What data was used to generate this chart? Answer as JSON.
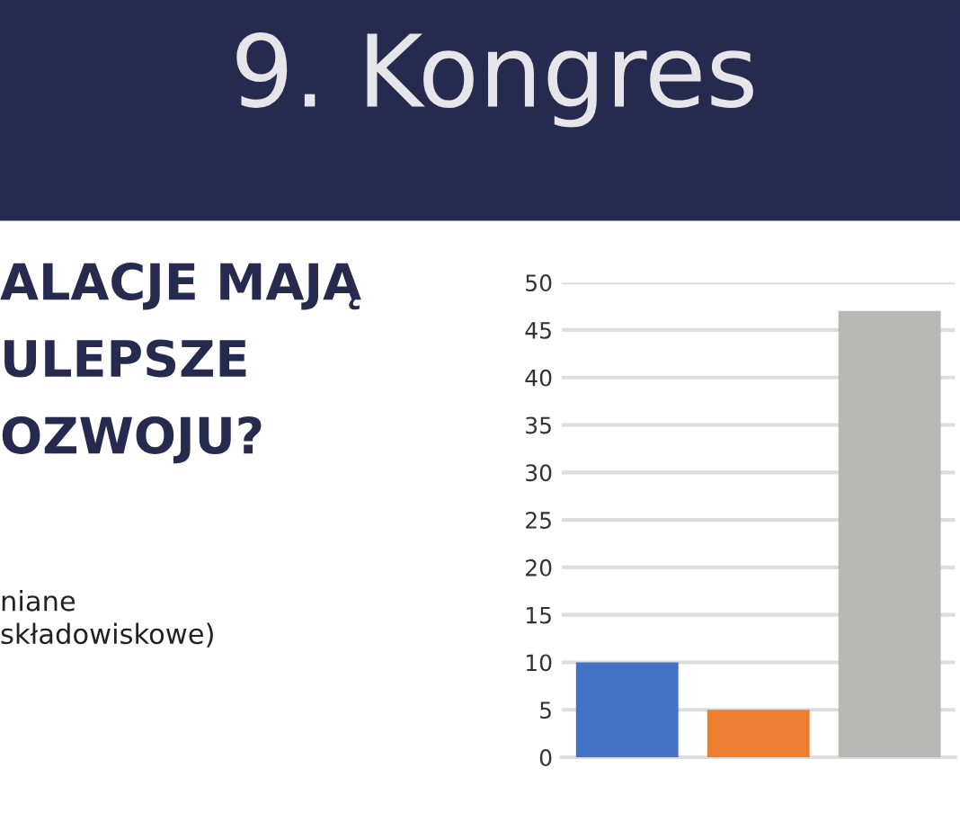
{
  "chart_data": {
    "type": "bar",
    "title": "9. Kongres",
    "subtitle": "ALACJE MAJĄ\nULEPSZE\nOZWOJU?",
    "annotations": [
      "niane\nskładowiskowe)"
    ],
    "categories": [
      null,
      null,
      null
    ],
    "values": [
      10,
      5,
      47
    ],
    "colors": [
      "#4472c4",
      "#ed7d31",
      "#b8b8b6"
    ],
    "ylim": [
      0,
      50
    ],
    "yticks": [
      0,
      5,
      10,
      15,
      20,
      25,
      30,
      35,
      40,
      45,
      50
    ],
    "grid": "y",
    "legend": false
  }
}
